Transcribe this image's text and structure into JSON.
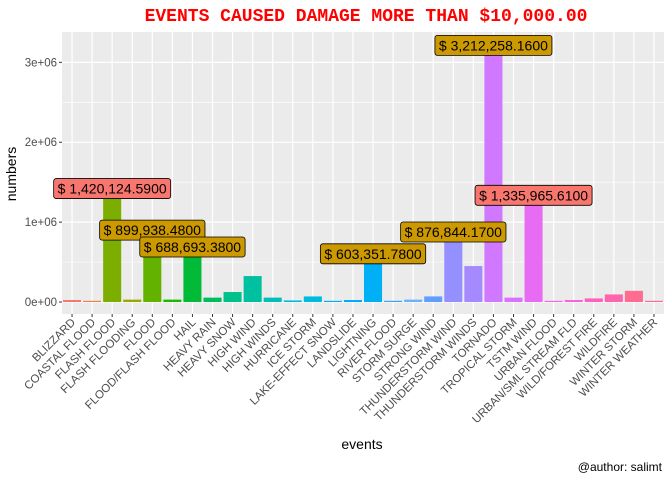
{
  "chart_data": {
    "type": "bar",
    "title": "EVENTS CAUSED DAMAGE MORE THAN $10,000.00",
    "xlabel": "events",
    "ylabel": "numbers",
    "caption": "@author: salimt",
    "title_color": "#ff0000",
    "ylim": [
      -150000,
      3380000
    ],
    "yticks": [
      0,
      1000000,
      2000000,
      3000000
    ],
    "ytick_labels": [
      "0e+00",
      "1e+06",
      "2e+06",
      "3e+06"
    ],
    "legend": "none",
    "grid": true,
    "categories": [
      "BLIZZARD",
      "COASTAL FLOOD",
      "FLASH FLOOD",
      "FLASH FLOODING",
      "FLOOD",
      "FLOOD/FLASH FLOOD",
      "HAIL",
      "HEAVY RAIN",
      "HEAVY SNOW",
      "HIGH WIND",
      "HIGH WINDS",
      "HURRICANE",
      "ICE STORM",
      "LAKE-EFFECT SNOW",
      "LANDSLIDE",
      "LIGHTNING",
      "RIVER FLOOD",
      "STORM SURGE",
      "STRONG WIND",
      "THUNDERSTORM WIND",
      "THUNDERSTORM WINDS",
      "TORNADO",
      "TROPICAL STORM",
      "TSTM WIND",
      "URBAN FLOOD",
      "URBAN/SML STREAM FLD",
      "WILD/FOREST FIRE",
      "WILDFIRE",
      "WINTER STORM",
      "WINTER WEATHER"
    ],
    "values": [
      25000,
      15000,
      1420124.59,
      30000,
      899938.48,
      30000,
      688693.38,
      55000,
      125000,
      325000,
      55000,
      20000,
      70000,
      15000,
      25000,
      603351.78,
      15000,
      30000,
      70000,
      876844.17,
      450000,
      3212258.16,
      55000,
      1335965.61,
      15000,
      25000,
      45000,
      95000,
      140000,
      15000
    ],
    "colors": [
      "#F8766D",
      "#EF7F49",
      "#7CAE00",
      "#9AA800",
      "#64B200",
      "#1DB900",
      "#00BA38",
      "#00BD5C",
      "#00C08B",
      "#00C19F",
      "#00BFB8",
      "#00BCD8",
      "#00BAE0",
      "#00B2F3",
      "#00A9FF",
      "#00B0F6",
      "#35A2FF",
      "#6BB1FF",
      "#619CFF",
      "#9590FF",
      "#A58AFF",
      "#D078FF",
      "#DB72FB",
      "#E76BF3",
      "#F564E3",
      "#FA62DB",
      "#FF62BC",
      "#FF65AC",
      "#FF6C91",
      "#FF6A98"
    ],
    "data_labels": [
      {
        "category": "FLASH FLOOD",
        "text": "$ 1,420,124.5900",
        "fill": "#F8766D"
      },
      {
        "category": "FLOOD",
        "text": "$ 899,938.4800",
        "fill": "#CC9900"
      },
      {
        "category": "HAIL",
        "text": "$ 688,693.3800",
        "fill": "#CC9900"
      },
      {
        "category": "LIGHTNING",
        "text": "$ 603,351.7800",
        "fill": "#CC9900"
      },
      {
        "category": "THUNDERSTORM WIND",
        "text": "$ 876,844.1700",
        "fill": "#CC9900"
      },
      {
        "category": "TORNADO",
        "text": "$ 3,212,258.1600",
        "fill": "#CC9900"
      },
      {
        "category": "TSTM WIND",
        "text": "$ 1,335,965.6100",
        "fill": "#F8766D"
      }
    ]
  }
}
